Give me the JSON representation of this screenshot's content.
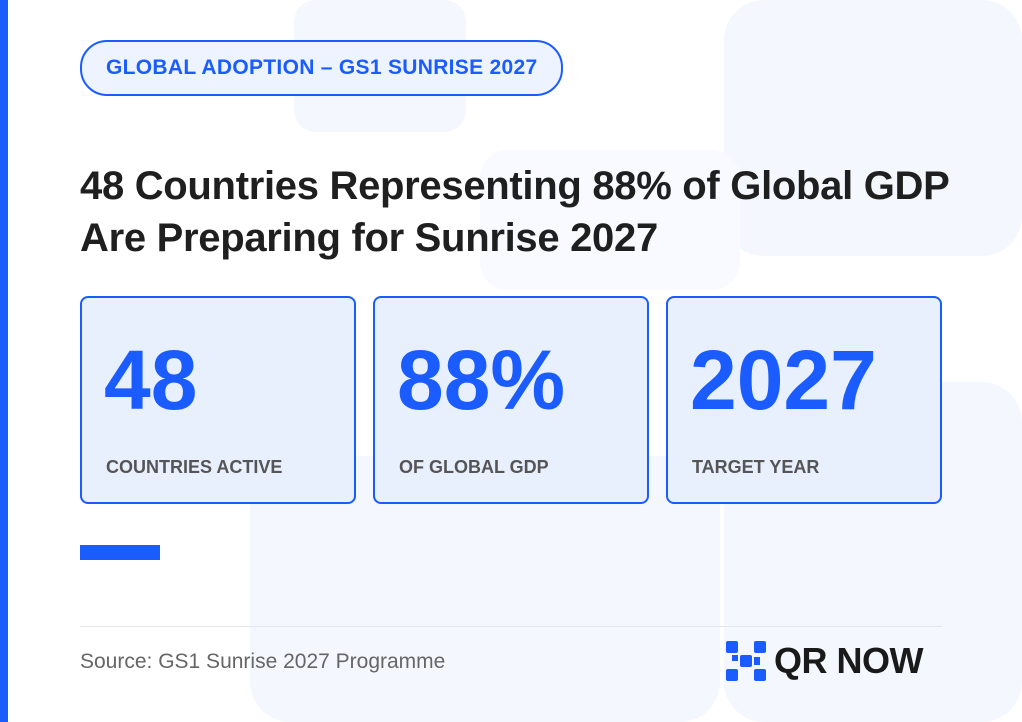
{
  "theme": {
    "accent": "#1a5cff",
    "badge_background": "#eef4ff",
    "card_background": "#e8effd",
    "headline_color": "#1f1f1f",
    "muted_text": "#555555",
    "watermark": "#f4f7fd"
  },
  "badge": {
    "text": "GLOBAL ADOPTION – GS1 SUNRISE 2027"
  },
  "headline": {
    "text": "48 Countries Representing 88% of Global GDP Are Preparing for Sunrise 2027"
  },
  "stats": [
    {
      "value": "48",
      "label": "COUNTRIES ACTIVE"
    },
    {
      "value": "88%",
      "label": "OF GLOBAL GDP"
    },
    {
      "value": "2027",
      "label": "TARGET YEAR"
    }
  ],
  "footer": {
    "source": "Source: GS1 Sunrise 2027 Programme",
    "logo_text": "QR NOW",
    "logo_icon": "qr-pixel-icon"
  }
}
